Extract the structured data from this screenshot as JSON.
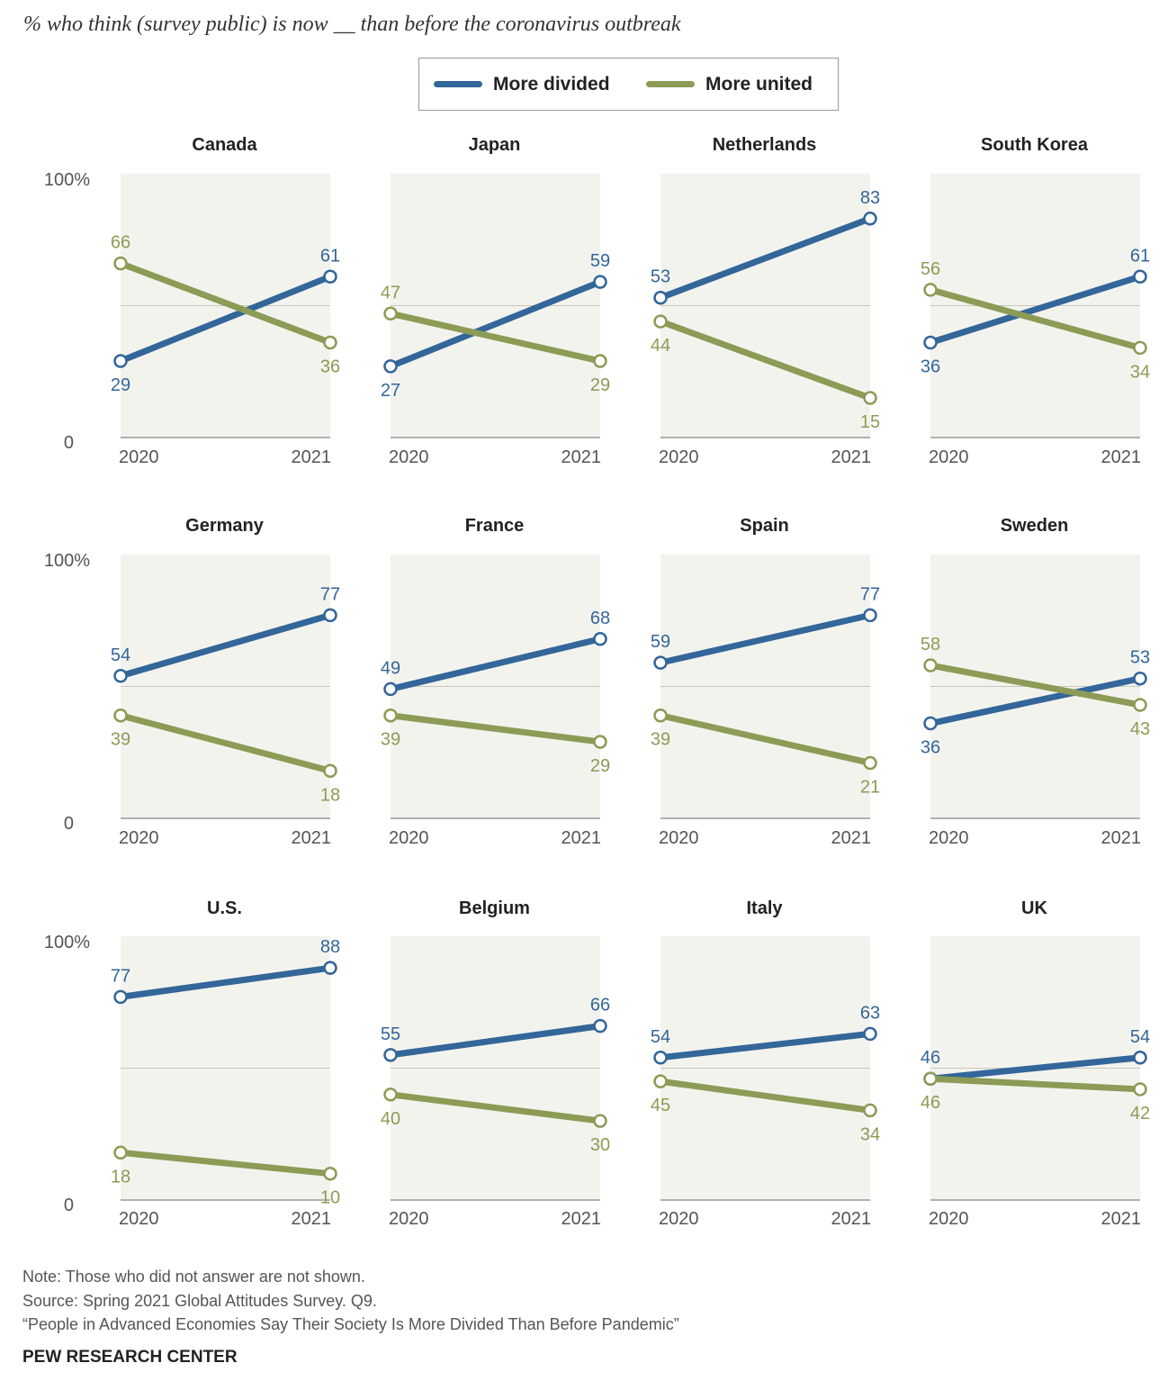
{
  "subtitle": "% who think (survey public) is now __ than before the coronavirus outbreak",
  "colors": {
    "divided": "#336699",
    "united": "#8c9b55",
    "panel_bg": "#f3f3ee",
    "midline": "#c8c8c0",
    "axis": "#999999"
  },
  "legend": {
    "divided_label": "More divided",
    "united_label": "More united"
  },
  "chart_data": {
    "type": "line",
    "x": [
      "2020",
      "2021"
    ],
    "y_ticks": [
      "100%",
      "0"
    ],
    "ylim": [
      0,
      100
    ],
    "series_names": [
      "More divided",
      "More united"
    ],
    "panels": [
      {
        "name": "Canada",
        "divided": [
          29,
          61
        ],
        "united": [
          66,
          36
        ]
      },
      {
        "name": "Japan",
        "divided": [
          27,
          59
        ],
        "united": [
          47,
          29
        ]
      },
      {
        "name": "Netherlands",
        "divided": [
          53,
          83
        ],
        "united": [
          44,
          15
        ]
      },
      {
        "name": "South Korea",
        "divided": [
          36,
          61
        ],
        "united": [
          56,
          34
        ]
      },
      {
        "name": "Germany",
        "divided": [
          54,
          77
        ],
        "united": [
          39,
          18
        ]
      },
      {
        "name": "France",
        "divided": [
          49,
          68
        ],
        "united": [
          39,
          29
        ]
      },
      {
        "name": "Spain",
        "divided": [
          59,
          77
        ],
        "united": [
          39,
          21
        ]
      },
      {
        "name": "Sweden",
        "divided": [
          36,
          53
        ],
        "united": [
          58,
          43
        ]
      },
      {
        "name": "U.S.",
        "divided": [
          77,
          88
        ],
        "united": [
          18,
          10
        ]
      },
      {
        "name": "Belgium",
        "divided": [
          55,
          66
        ],
        "united": [
          40,
          30
        ]
      },
      {
        "name": "Italy",
        "divided": [
          54,
          63
        ],
        "united": [
          45,
          34
        ]
      },
      {
        "name": "UK",
        "divided": [
          46,
          54
        ],
        "united": [
          46,
          42
        ]
      }
    ]
  },
  "footer": {
    "note": "Note: Those who did not answer are not shown.",
    "source": "Source: Spring 2021 Global Attitudes Survey. Q9.",
    "report": "“People in Advanced Economies Say Their Society Is More Divided Than Before Pandemic”",
    "brand": "PEW RESEARCH CENTER"
  }
}
